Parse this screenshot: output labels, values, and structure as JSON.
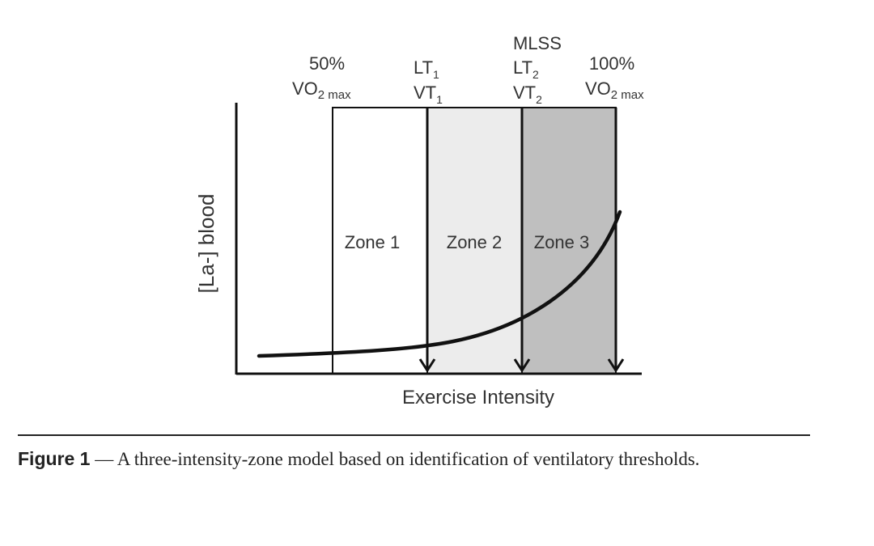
{
  "diagram": {
    "y_axis_label": "[La-] blood",
    "x_axis_label": "Exercise Intensity",
    "zones": [
      {
        "label": "Zone 1",
        "fill": "#ffffff"
      },
      {
        "label": "Zone 2",
        "fill": "#ececec"
      },
      {
        "label": "Zone 3",
        "fill": "#bfbfbf"
      }
    ],
    "markers": {
      "vo2_50": {
        "pct": "50%",
        "symbol": "VO",
        "sub": "2 max"
      },
      "lt1": {
        "lt": "LT",
        "lt_sub": "1",
        "vt": "VT",
        "vt_sub": "1"
      },
      "lt2": {
        "mlss": "MLSS",
        "lt": "LT",
        "lt_sub": "2",
        "vt": "VT",
        "vt_sub": "2"
      },
      "vo2_100": {
        "pct": "100%",
        "symbol": "VO",
        "sub": "2 max"
      }
    },
    "colors": {
      "line": "#111111",
      "text": "#333333"
    }
  },
  "caption": {
    "label": "Figure 1",
    "text": " — A three-intensity-zone model based on identification of ventilatory thresholds."
  }
}
